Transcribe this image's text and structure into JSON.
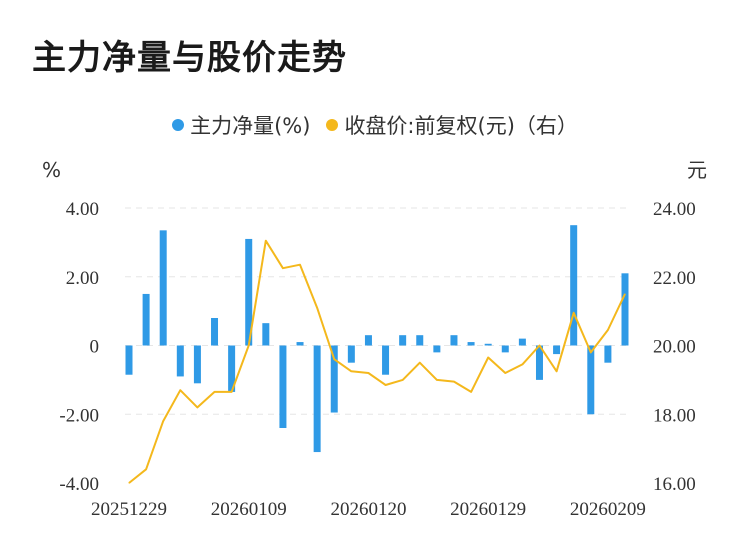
{
  "title": "主力净量与股价走势",
  "colors": {
    "bar": "#2f9ae6",
    "line": "#f4b81c",
    "grid": "#e6e6e6"
  },
  "chart_data": {
    "type": "bar+line",
    "title": "主力净量与股价走势",
    "legend_position": "top",
    "grid": true,
    "left_axis": {
      "unit": "%",
      "range": [
        -4,
        4
      ],
      "ticks": [
        "4.00",
        "2.00",
        "0",
        "-2.00",
        "-4.00"
      ]
    },
    "right_axis": {
      "unit": "元",
      "range": [
        16,
        24
      ],
      "ticks": [
        "24.00",
        "22.00",
        "20.00",
        "18.00",
        "16.00"
      ]
    },
    "x_tick_labels": [
      "20251229",
      "20260109",
      "20260120",
      "20260129",
      "20260209"
    ],
    "x_tick_index": [
      0,
      7,
      14,
      21,
      28
    ],
    "series": [
      {
        "name": "主力净量(%)",
        "type": "bar",
        "axis": "left",
        "values": [
          -0.85,
          1.5,
          3.35,
          -0.9,
          -1.1,
          0.8,
          -1.35,
          3.1,
          0.65,
          -2.4,
          0.1,
          -3.1,
          -1.95,
          -0.5,
          0.3,
          -0.85,
          0.3,
          0.3,
          -0.2,
          0.3,
          0.1,
          0.05,
          -0.2,
          0.2,
          -1.0,
          -0.25,
          3.5,
          -2.0,
          -0.5,
          2.1
        ]
      },
      {
        "name": "收盘价:前复权(元)（右）",
        "type": "line",
        "axis": "right",
        "values": [
          16.0,
          16.4,
          17.8,
          18.7,
          18.2,
          18.65,
          18.65,
          20.0,
          23.05,
          22.25,
          22.35,
          21.1,
          19.6,
          19.25,
          19.2,
          18.85,
          19.0,
          19.5,
          19.0,
          18.95,
          18.65,
          19.65,
          19.2,
          19.45,
          20.0,
          19.25,
          20.95,
          19.8,
          20.45,
          21.5
        ]
      }
    ]
  }
}
